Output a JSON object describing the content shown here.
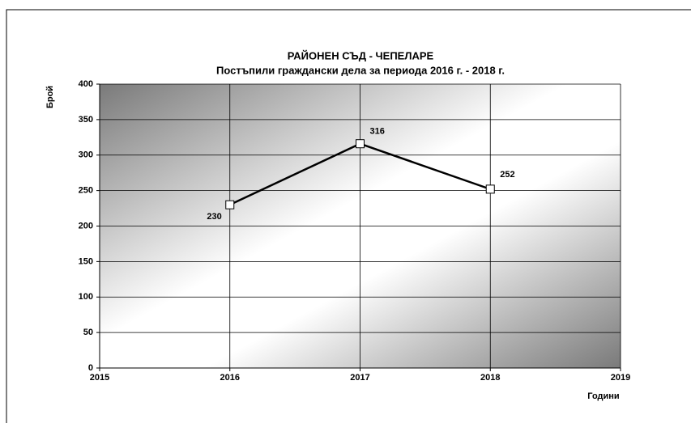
{
  "chart_data": {
    "type": "line",
    "title": "РАЙОНЕН СЪД - ЧЕПЕЛАРЕ",
    "subtitle": "Постъпили граждански дела за периода  2016 г. - 2018 г.",
    "y_label": "Брой",
    "x_label": "Години",
    "x": [
      2016,
      2017,
      2018
    ],
    "series": [
      {
        "name": null,
        "color": "#000000",
        "values": [
          230,
          316,
          252
        ]
      }
    ],
    "xlim": [
      2015,
      2019
    ],
    "xticks": [
      2015,
      2016,
      2017,
      2018,
      2019
    ],
    "ylim": [
      0,
      400
    ],
    "yticks": [
      0,
      50,
      100,
      150,
      200,
      250,
      300,
      350,
      400
    ],
    "grid": true
  }
}
